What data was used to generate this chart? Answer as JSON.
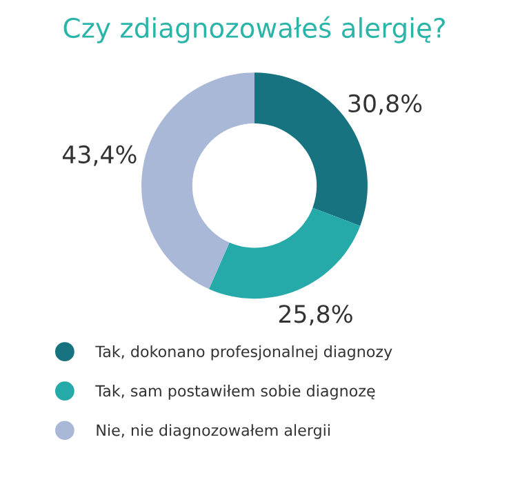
{
  "chart_data": {
    "type": "donut",
    "title": "Czy zdiagnozowałeś alergię?",
    "categories": [
      "Tak, dokonano profesjonalnej diagnozy",
      "Tak, sam postawiłem sobie diagnozę",
      "Nie, nie diagnozowałem alergii"
    ],
    "values": [
      30.8,
      25.8,
      43.4
    ],
    "value_labels": [
      "30,8%",
      "25,8%",
      "43,4%"
    ],
    "colors": [
      "#17737f",
      "#25aaa9",
      "#aab8d8"
    ],
    "legend": "bottom"
  }
}
